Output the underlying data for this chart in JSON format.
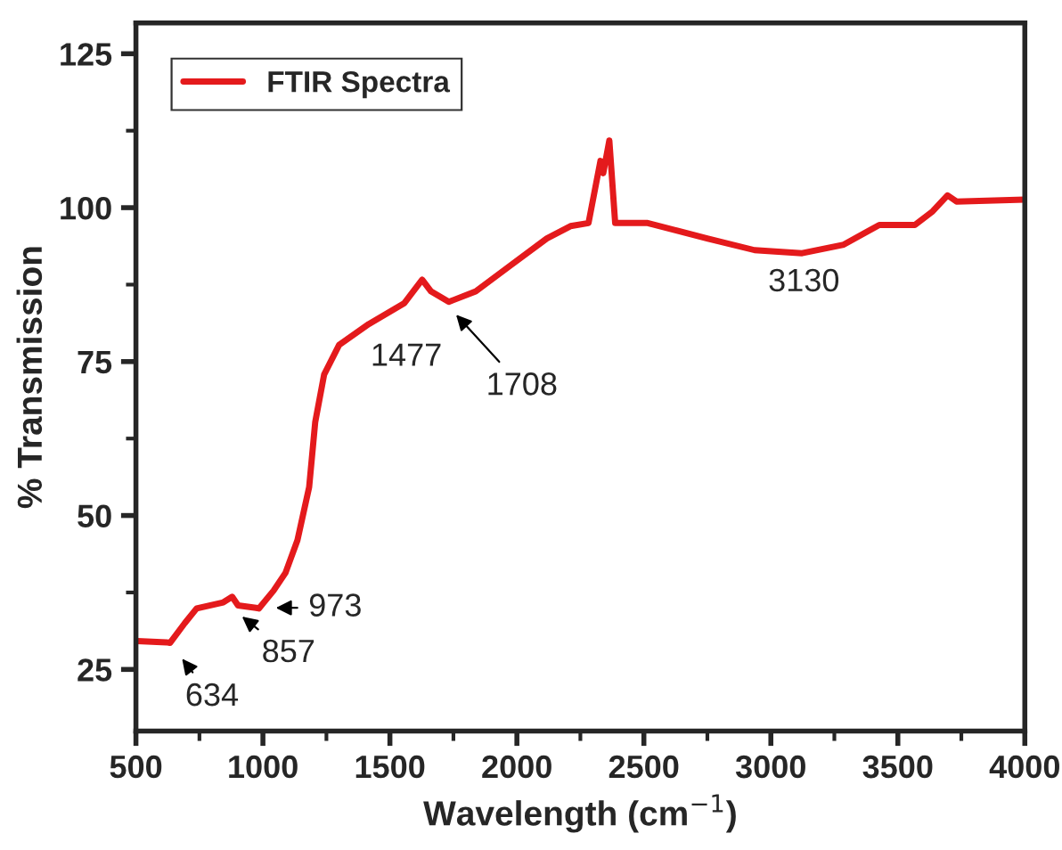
{
  "chart_data": {
    "type": "line",
    "xlabel": "Wavelength (cm$^{−1}$)",
    "ylabel": "% Transmission",
    "xlim": [
      500,
      4000
    ],
    "ylim": [
      15,
      130
    ],
    "xticks": [
      500,
      1000,
      1500,
      2000,
      2500,
      3000,
      3500,
      4000
    ],
    "yticks": [
      25,
      50,
      75,
      100,
      125
    ],
    "grid": false,
    "legend": "top left",
    "marker": "none",
    "line_style": "solid",
    "series": [
      {
        "name": "FTIR Spectra",
        "color": "#e41a1c",
        "x": [
          505,
          621,
          634,
          692,
          739,
          844,
          879,
          902,
          973,
          984,
          1042,
          1089,
          1136,
          1182,
          1206,
          1241,
          1300,
          1417,
          1557,
          1627,
          1662,
          1732,
          1838,
          1978,
          2118,
          2211,
          2282,
          2329,
          2340,
          2364,
          2387,
          2515,
          2749,
          2936,
          3123,
          3287,
          3427,
          3567,
          3637,
          3696,
          3731,
          4000
        ],
        "values": [
          29.6,
          29.4,
          29.3,
          32.5,
          34.9,
          35.9,
          36.8,
          35.4,
          35.0,
          34.9,
          37.8,
          40.7,
          46,
          54.6,
          65.2,
          72.9,
          77.7,
          81.1,
          84.5,
          88.3,
          86.4,
          84.7,
          86.4,
          90.7,
          95,
          97,
          97.5,
          107.6,
          105.6,
          110.9,
          97.5,
          97.5,
          95,
          93.1,
          92.6,
          94,
          97.2,
          97.2,
          99.4,
          102,
          101,
          101.3
        ]
      }
    ],
    "annotations": [
      {
        "text": "634",
        "x": 634,
        "y": 29.3
      },
      {
        "text": "857",
        "x": 857,
        "y": 35.6
      },
      {
        "text": "973",
        "x": 973,
        "y": 35.0
      },
      {
        "text": "1477",
        "x": 1477,
        "y": 82.5
      },
      {
        "text": "1708",
        "x": 1708,
        "y": 85.0
      },
      {
        "text": "3130",
        "x": 3130,
        "y": 92.6
      }
    ]
  }
}
